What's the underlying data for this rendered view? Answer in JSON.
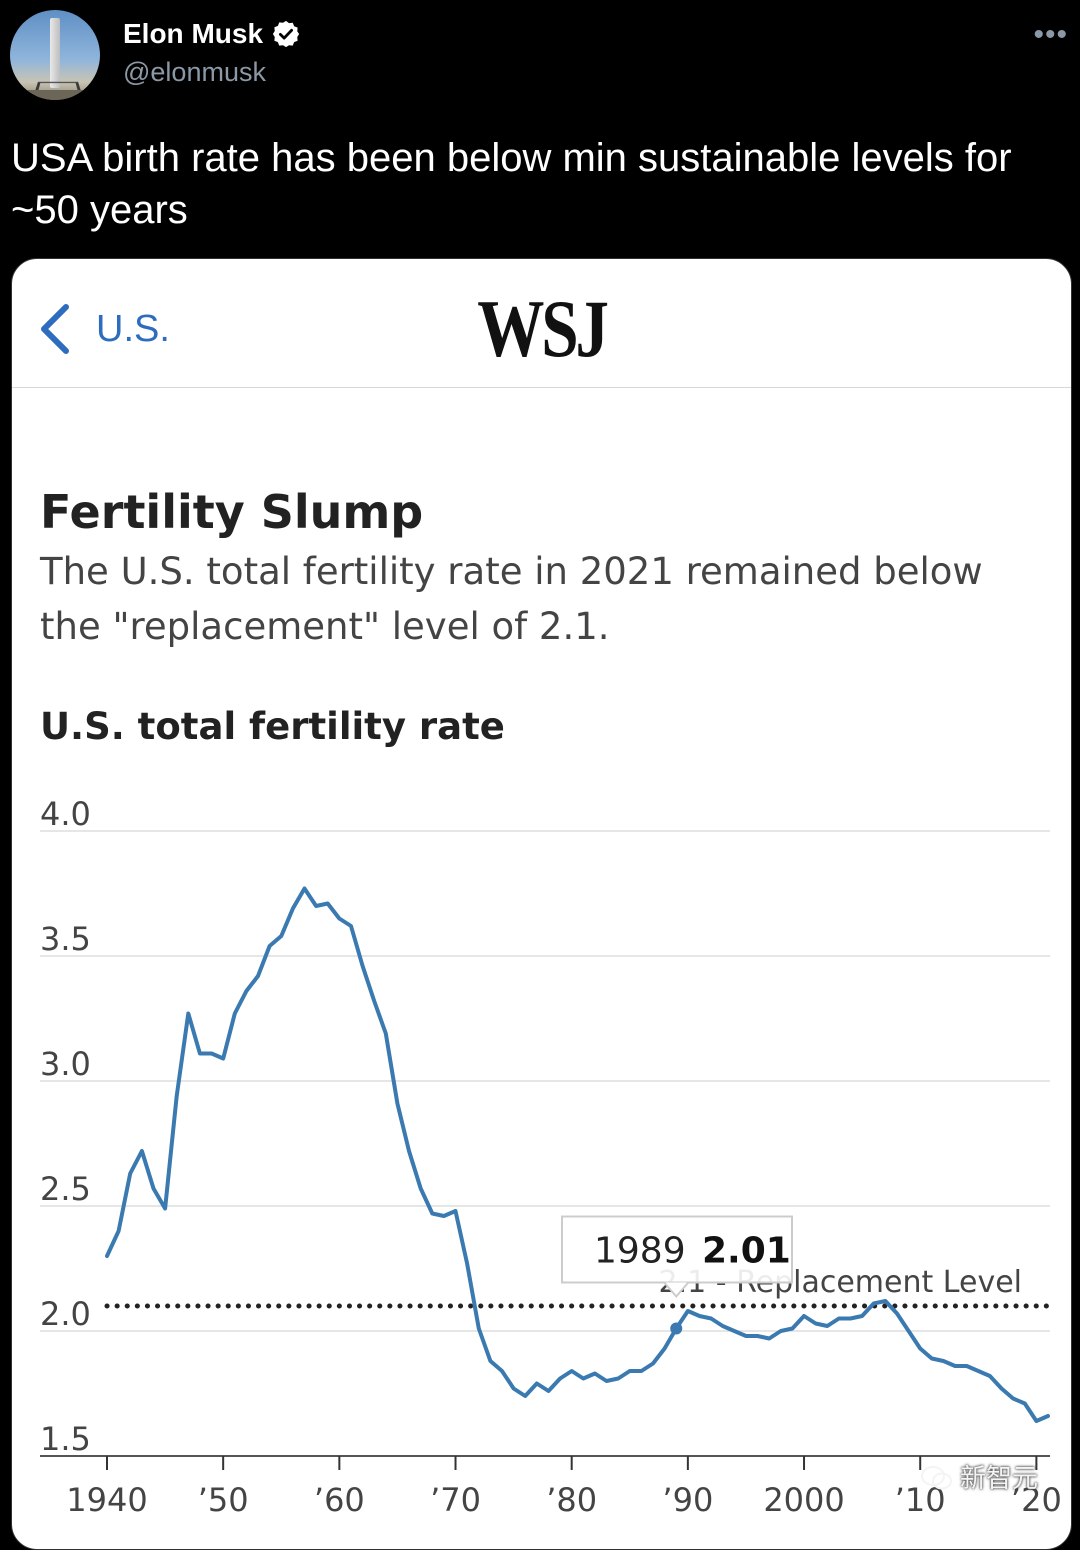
{
  "tweet": {
    "author_name": "Elon Musk",
    "author_handle": "@elonmusk",
    "more_label": "•••",
    "text": "USA birth rate has been below min sustainable levels for ~50 years"
  },
  "card": {
    "back_label": "U.S.",
    "logo_text": "WSJ",
    "headline": "Fertility Slump",
    "dek": "The U.S. total fertility rate in 2021 remained below the \"replacement\" level of 2.1."
  },
  "chart_data": {
    "type": "line",
    "title": "U.S. total fertility rate",
    "xlabel": "",
    "ylabel": "",
    "xlim": [
      1940,
      2021
    ],
    "ylim": [
      1.5,
      4.0
    ],
    "y_ticks": [
      1.5,
      2.0,
      2.5,
      3.0,
      3.5,
      4.0
    ],
    "y_tick_labels": [
      "1.5",
      "2.0",
      "2.5",
      "3.0",
      "3.5",
      "4.0"
    ],
    "x_ticks": [
      1940,
      1950,
      1960,
      1970,
      1980,
      1990,
      2000,
      2010,
      2020
    ],
    "x_tick_labels": [
      "1940",
      "’50",
      "’60",
      "’70",
      "’80",
      "’90",
      "2000",
      "’10",
      "’20"
    ],
    "grid": true,
    "series": [
      {
        "color": "#3a7ab0",
        "x": [
          1940,
          1941,
          1942,
          1943,
          1944,
          1945,
          1946,
          1947,
          1948,
          1949,
          1950,
          1951,
          1952,
          1953,
          1954,
          1955,
          1956,
          1957,
          1958,
          1959,
          1960,
          1961,
          1962,
          1963,
          1964,
          1965,
          1966,
          1967,
          1968,
          1969,
          1970,
          1971,
          1972,
          1973,
          1974,
          1975,
          1976,
          1977,
          1978,
          1979,
          1980,
          1981,
          1982,
          1983,
          1984,
          1985,
          1986,
          1987,
          1988,
          1989,
          1990,
          1991,
          1992,
          1993,
          1994,
          1995,
          1996,
          1997,
          1998,
          1999,
          2000,
          2001,
          2002,
          2003,
          2004,
          2005,
          2006,
          2007,
          2008,
          2009,
          2010,
          2011,
          2012,
          2013,
          2014,
          2015,
          2016,
          2017,
          2018,
          2019,
          2020,
          2021
        ],
        "y": [
          2.3,
          2.4,
          2.63,
          2.72,
          2.57,
          2.49,
          2.94,
          3.27,
          3.11,
          3.11,
          3.09,
          3.27,
          3.36,
          3.42,
          3.54,
          3.58,
          3.69,
          3.77,
          3.7,
          3.71,
          3.65,
          3.62,
          3.46,
          3.32,
          3.19,
          2.91,
          2.72,
          2.57,
          2.47,
          2.46,
          2.48,
          2.27,
          2.01,
          1.88,
          1.84,
          1.77,
          1.74,
          1.79,
          1.76,
          1.81,
          1.84,
          1.81,
          1.83,
          1.8,
          1.81,
          1.84,
          1.84,
          1.87,
          1.93,
          2.01,
          2.08,
          2.06,
          2.05,
          2.02,
          2.0,
          1.98,
          1.98,
          1.97,
          2.0,
          2.01,
          2.06,
          2.03,
          2.02,
          2.05,
          2.05,
          2.06,
          2.11,
          2.12,
          2.07,
          2.0,
          1.93,
          1.89,
          1.88,
          1.86,
          1.86,
          1.84,
          1.82,
          1.77,
          1.73,
          1.71,
          1.64,
          1.66
        ]
      }
    ],
    "reference_line": {
      "value": 2.1,
      "label": "2.1 - Replacement Level"
    },
    "tooltip": {
      "year": "1989",
      "value": "2.01",
      "x": 1989,
      "y": 2.01
    }
  },
  "watermark": {
    "text": "新智元"
  },
  "colors": {
    "background": "#000000",
    "line": "#3a7ab0",
    "link_blue": "#2e6cc0",
    "grid": "#dddddd",
    "handle_gray": "#8b98a5"
  }
}
